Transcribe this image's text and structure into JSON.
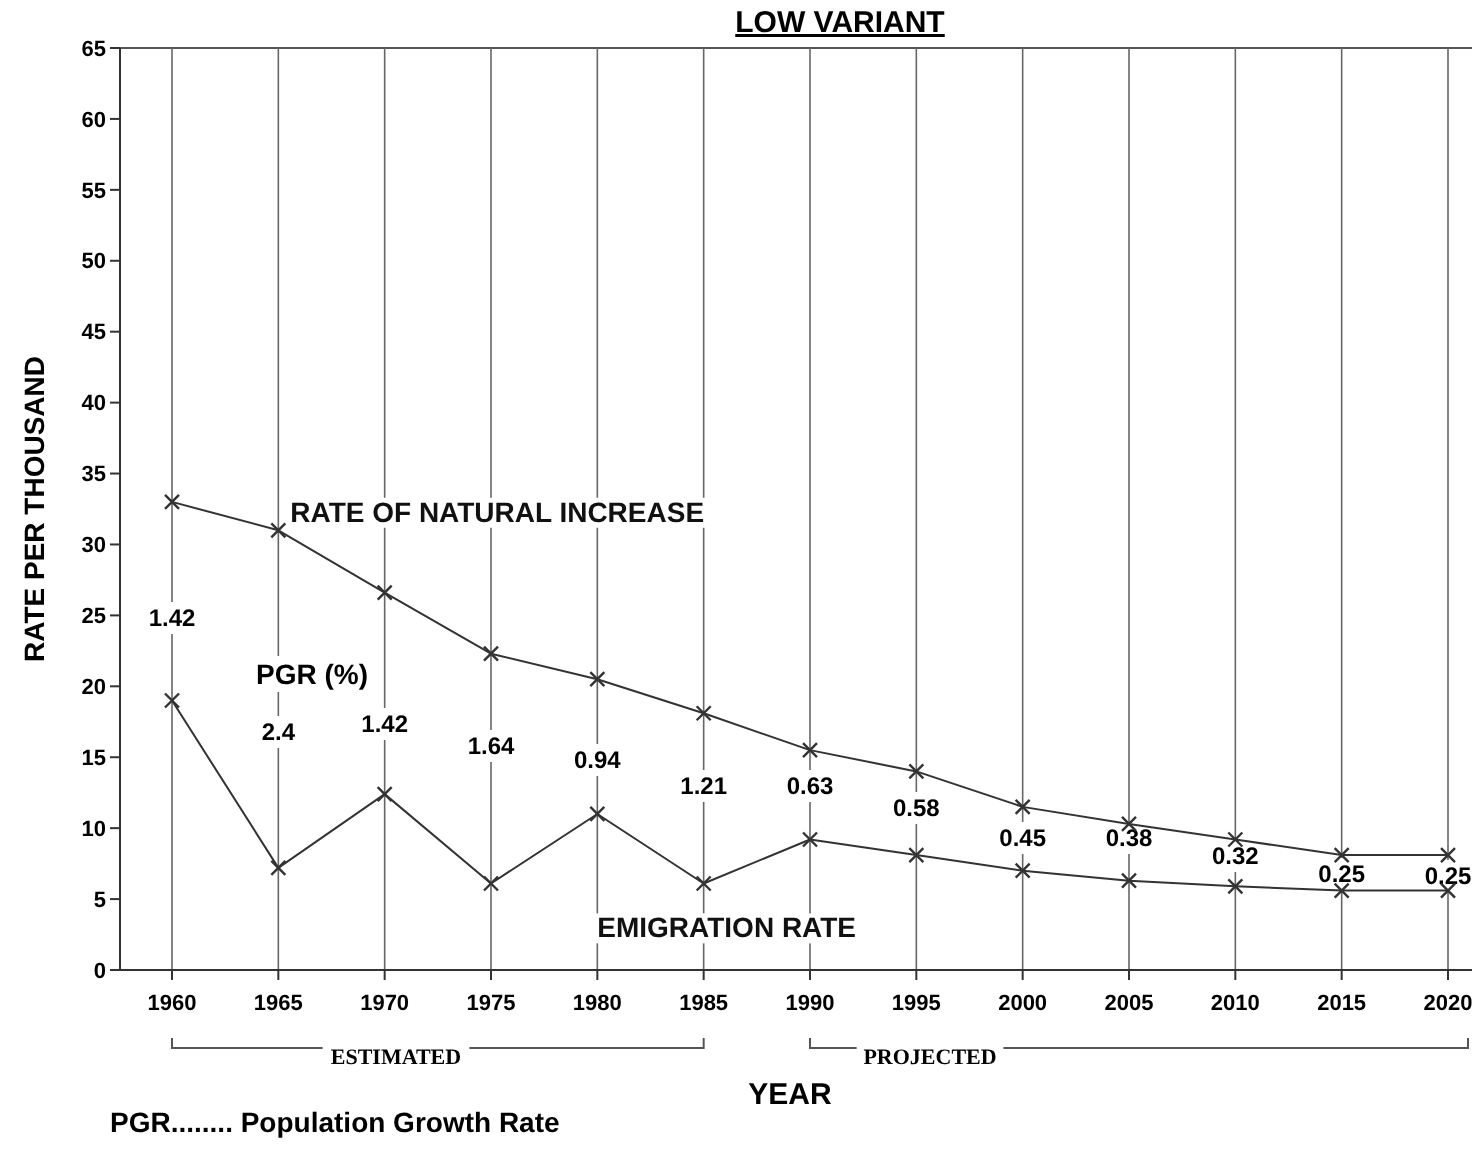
{
  "chart_data": {
    "type": "line",
    "title": "LOW VARIANT",
    "xlabel": "YEAR",
    "ylabel": "RATE PER THOUSAND",
    "categories": [
      "1960",
      "1965",
      "1970",
      "1975",
      "1980",
      "1985",
      "1990",
      "1995",
      "2000",
      "2005",
      "2010",
      "2015",
      "2020"
    ],
    "series": [
      {
        "name": "RATE OF NATURAL INCREASE",
        "color": "#333333",
        "values": [
          33,
          31,
          26.6,
          22.3,
          20.5,
          18.1,
          15.5,
          14,
          11.5,
          10.3,
          9.2,
          8.1,
          8.1
        ]
      },
      {
        "name": "EMIGRATION RATE",
        "color": "#333333",
        "values": [
          19,
          7.2,
          12.4,
          6.1,
          11,
          6.1,
          9.2,
          8.1,
          7,
          6.3,
          5.9,
          5.6,
          5.6
        ]
      }
    ],
    "ylim": [
      0,
      65
    ],
    "yticks": [
      0,
      5,
      10,
      15,
      20,
      25,
      30,
      35,
      40,
      45,
      50,
      55,
      60,
      65
    ],
    "grid": "x",
    "marker": "cross",
    "line_style": "solid",
    "annotations": [
      "PGR (%)",
      "ESTIMATED",
      "PROJECTED",
      "PGR........ Population Growth Rate",
      "1.42",
      "2.4",
      "1.42",
      "1.64",
      "0.94",
      "1.21",
      "0.63",
      "0.58",
      "0.45",
      "0.38",
      "0.32",
      "0.25",
      "0.25"
    ]
  }
}
